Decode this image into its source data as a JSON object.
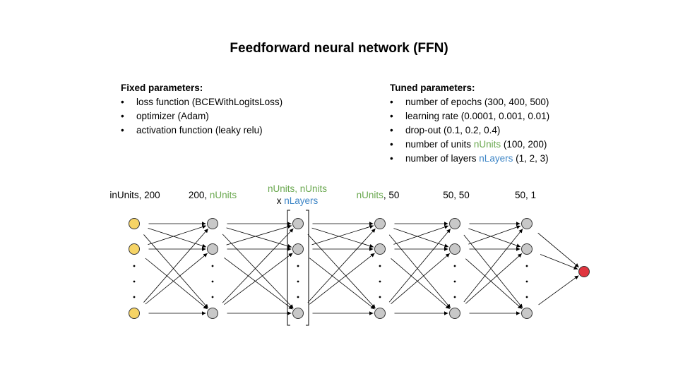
{
  "title": "Feedforward neural network (FFN)",
  "fixed": {
    "heading": "Fixed parameters:",
    "items": [
      "loss function (BCEWithLogitsLoss)",
      "optimizer (Adam)",
      "activation function (leaky relu)"
    ]
  },
  "tuned": {
    "heading": "Tuned parameters:",
    "items": [
      {
        "before": "number of epochs (300, 400, 500)",
        "hl": "",
        "after": ""
      },
      {
        "before": "learning rate (0.0001, 0.001, 0.01)",
        "hl": "",
        "after": ""
      },
      {
        "before": "drop-out (0.1, 0.2, 0.4)",
        "hl": "",
        "after": ""
      },
      {
        "before": "number of units ",
        "hl": "nUnits",
        "after": " (100, 200)"
      },
      {
        "before": "number of layers ",
        "hl": "nLayers",
        "after": " (1, 2, 3)"
      }
    ]
  },
  "layers": [
    {
      "label_a": "inUnits, 200",
      "label_b": ""
    },
    {
      "label_a": "200, ",
      "label_b": "nUnits"
    },
    {
      "label_a": "nUnits, nUnits",
      "label_b": "x ",
      "label_c": "nLayers"
    },
    {
      "label_a": "nUnits",
      "label_b": ", 50"
    },
    {
      "label_a": "50, 50",
      "label_b": ""
    },
    {
      "label_a": "50, 1",
      "label_b": ""
    }
  ],
  "colors": {
    "input_node": "#f6d466",
    "hidden_node": "#c8c8c8",
    "output_node": "#e0353f",
    "green": "#6aa84f",
    "blue": "#3d85c6"
  }
}
